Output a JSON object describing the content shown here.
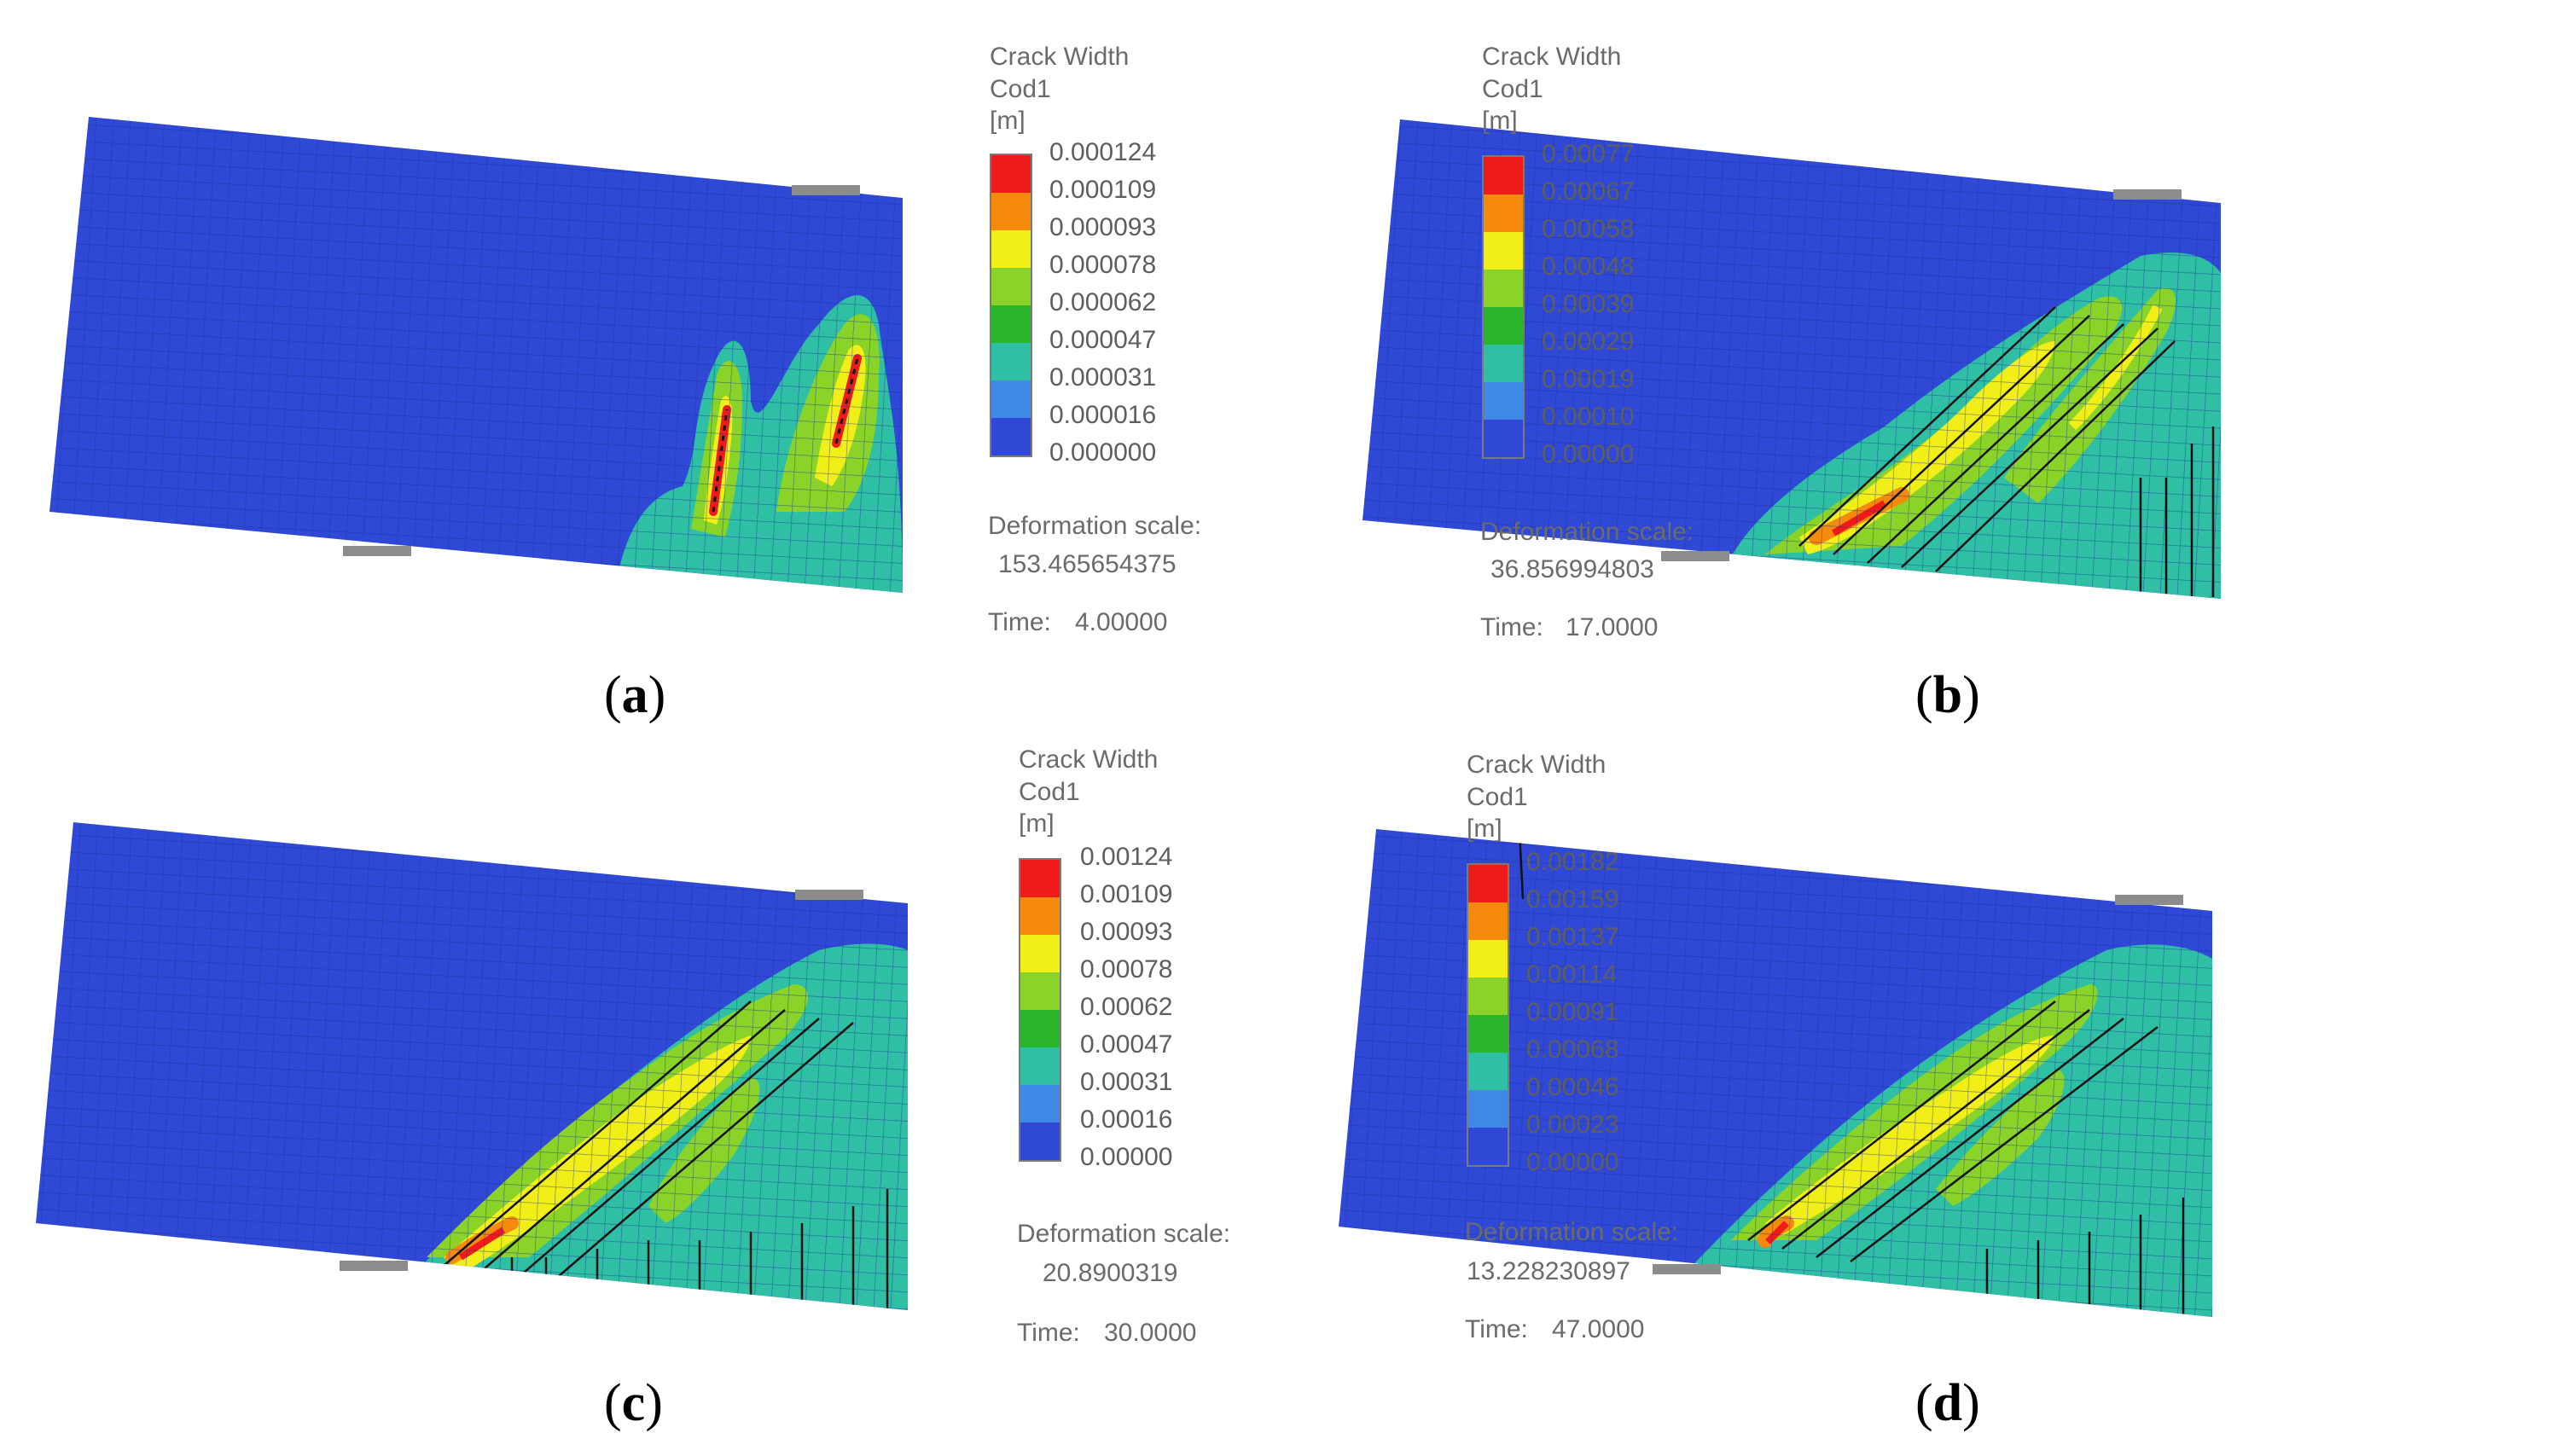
{
  "colors": {
    "background": "#ffffff",
    "mesh": "#2f49d6",
    "scale": [
      "#ef1b1b",
      "#f58a0c",
      "#f2ef18",
      "#8ad42a",
      "#29b52c",
      "#2fbfa4",
      "#3f88e6",
      "#2f49d6"
    ]
  },
  "panels": [
    {
      "id": "a",
      "caption": "a",
      "legend_title": [
        "Crack Width",
        "Cod1",
        "[m]"
      ],
      "ticks": [
        "0.000124",
        "0.000109",
        "0.000093",
        "0.000078",
        "0.000062",
        "0.000047",
        "0.000031",
        "0.000016",
        "0.000000"
      ],
      "deformation_label": "Deformation scale:",
      "deformation_value": "153.465654375",
      "time_label": "Time:",
      "time_value": "4.00000"
    },
    {
      "id": "b",
      "caption": "b",
      "legend_title": [
        "Crack Width",
        "Cod1",
        "[m]"
      ],
      "ticks": [
        "0.00077",
        "0.00067",
        "0.00058",
        "0.00048",
        "0.00039",
        "0.00029",
        "0.00019",
        "0.00010",
        "0.00000"
      ],
      "deformation_label": "Deformation scale:",
      "deformation_value": "36.856994803",
      "time_label": "Time:",
      "time_value": "17.0000"
    },
    {
      "id": "c",
      "caption": "c",
      "legend_title": [
        "Crack Width",
        "Cod1",
        "[m]"
      ],
      "ticks": [
        "0.00124",
        "0.00109",
        "0.00093",
        "0.00078",
        "0.00062",
        "0.00047",
        "0.00031",
        "0.00016",
        "0.00000"
      ],
      "deformation_label": "Deformation scale:",
      "deformation_value": "20.8900319",
      "time_label": "Time:",
      "time_value": "30.0000"
    },
    {
      "id": "d",
      "caption": "d",
      "legend_title": [
        "Crack Width",
        "Cod1",
        "[m]"
      ],
      "ticks": [
        "0.00182",
        "0.00159",
        "0.00137",
        "0.00114",
        "0.00091",
        "0.00068",
        "0.00046",
        "0.00023",
        "0.00000"
      ],
      "deformation_label": "Deformation scale:",
      "deformation_value": "13.228230897",
      "time_label": "Time:",
      "time_value": "47.0000"
    }
  ]
}
